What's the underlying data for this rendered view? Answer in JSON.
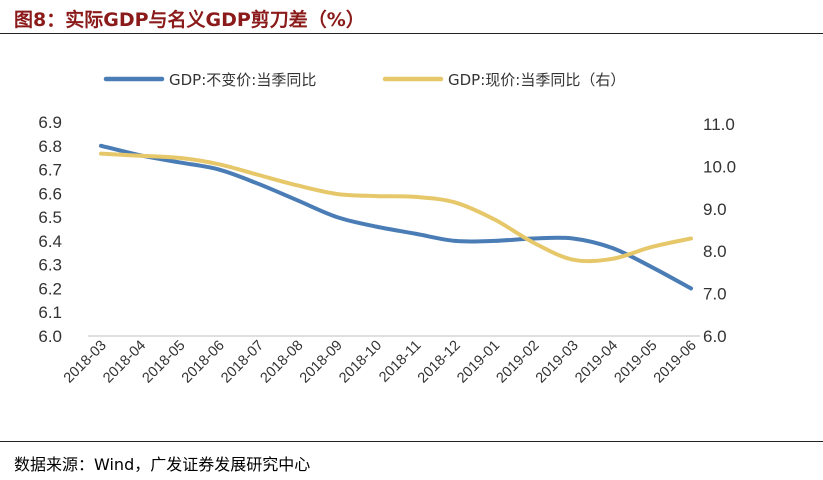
{
  "header": {
    "title": "图8：实际GDP与名义GDP剪刀差（%）"
  },
  "footer": {
    "source_label": "数据来源：",
    "source_text": "Wind，广发证券发展研究中心"
  },
  "colors": {
    "series_real": "#4a7cb5",
    "series_nominal": "#e6c86a",
    "title": "#8b1a1a"
  },
  "chart_data": {
    "type": "line",
    "title": "实际GDP与名义GDP剪刀差（%）",
    "categories": [
      "2018-03",
      "2018-04",
      "2018-05",
      "2018-06",
      "2018-07",
      "2018-08",
      "2018-09",
      "2018-10",
      "2018-11",
      "2018-12",
      "2019-01",
      "2019-02",
      "2019-03",
      "2019-04",
      "2019-05",
      "2019-06"
    ],
    "y_left": {
      "min": 6.0,
      "max": 6.9,
      "ticks": [
        "6.9",
        "6.8",
        "6.7",
        "6.6",
        "6.5",
        "6.4",
        "6.3",
        "6.2",
        "6.1",
        "6.0"
      ]
    },
    "y_right": {
      "min": 6.0,
      "max": 11.0,
      "ticks": [
        "11.0",
        "10.0",
        "9.0",
        "8.0",
        "7.0",
        "6.0"
      ]
    },
    "legend_position": "top",
    "series": [
      {
        "name": "GDP:不变价:当季同比",
        "axis": "left",
        "values": [
          6.8,
          6.76,
          6.73,
          6.7,
          6.64,
          6.57,
          6.5,
          6.46,
          6.43,
          6.4,
          6.4,
          6.41,
          6.41,
          6.37,
          6.29,
          6.2
        ]
      },
      {
        "name": "GDP:现价:当季同比（右）",
        "axis": "right",
        "values": [
          10.3,
          10.25,
          10.2,
          10.05,
          9.8,
          9.55,
          9.35,
          9.3,
          9.28,
          9.15,
          8.75,
          8.2,
          7.8,
          7.82,
          8.1,
          8.3
        ]
      }
    ]
  }
}
